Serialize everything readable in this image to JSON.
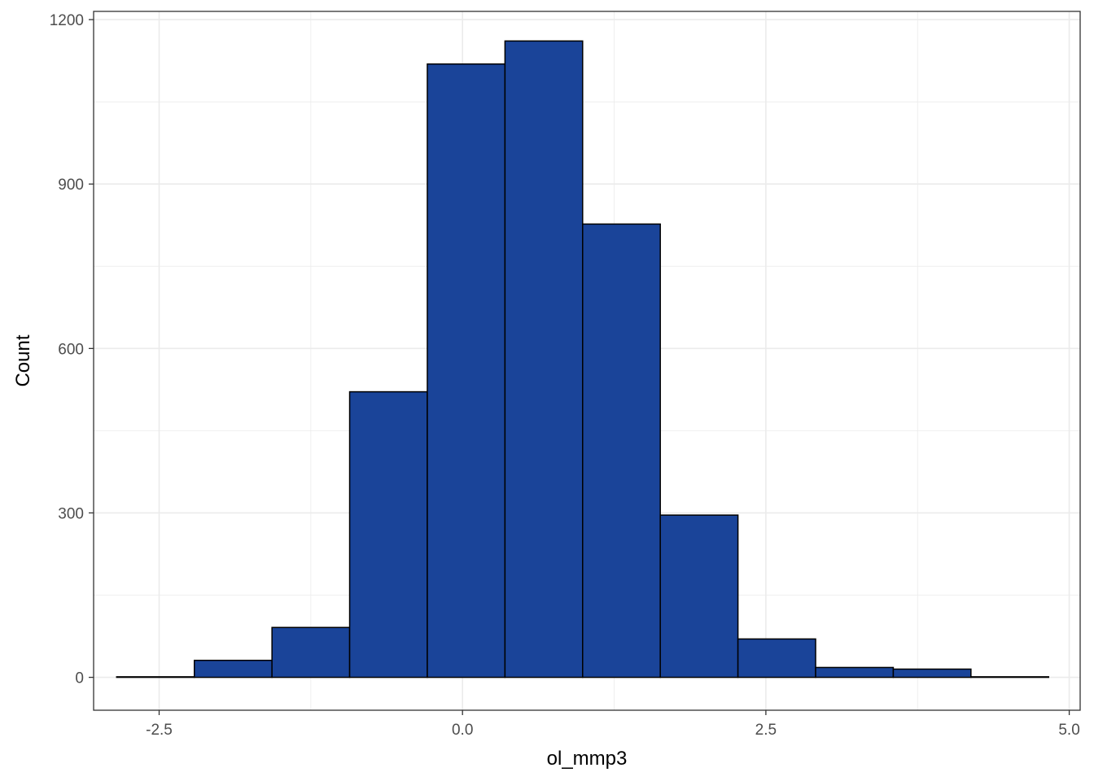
{
  "chart_data": {
    "type": "bar",
    "subtype": "histogram",
    "xlabel": "ol_mmp3",
    "ylabel": "Count",
    "xlim": [
      -3.04,
      5.09
    ],
    "ylim": [
      -60,
      1215
    ],
    "xticks": [
      -2.5,
      0.0,
      2.5,
      5.0
    ],
    "xtick_labels": [
      "-2.5",
      "0.0",
      "2.5",
      "5.0"
    ],
    "yticks": [
      0,
      300,
      600,
      900,
      1200
    ],
    "ytick_labels": [
      "0",
      "300",
      "600",
      "900",
      "1200"
    ],
    "bins": [
      {
        "x0": -2.85,
        "x1": -2.21,
        "count": 1
      },
      {
        "x0": -2.21,
        "x1": -1.57,
        "count": 31
      },
      {
        "x0": -1.57,
        "x1": -0.93,
        "count": 91
      },
      {
        "x0": -0.93,
        "x1": -0.29,
        "count": 521
      },
      {
        "x0": -0.29,
        "x1": 0.35,
        "count": 1119
      },
      {
        "x0": 0.35,
        "x1": 0.99,
        "count": 1161
      },
      {
        "x0": 0.99,
        "x1": 1.63,
        "count": 827
      },
      {
        "x0": 1.63,
        "x1": 2.27,
        "count": 296
      },
      {
        "x0": 2.27,
        "x1": 2.91,
        "count": 70
      },
      {
        "x0": 2.91,
        "x1": 3.55,
        "count": 18
      },
      {
        "x0": 3.55,
        "x1": 4.19,
        "count": 15
      },
      {
        "x0": 4.19,
        "x1": 4.83,
        "count": 1
      }
    ],
    "bar_fill": "#1a4499",
    "bar_stroke": "#000000",
    "grid": true,
    "grid_color": "#ebebeb",
    "panel_border": "#333333",
    "legend": "none"
  }
}
